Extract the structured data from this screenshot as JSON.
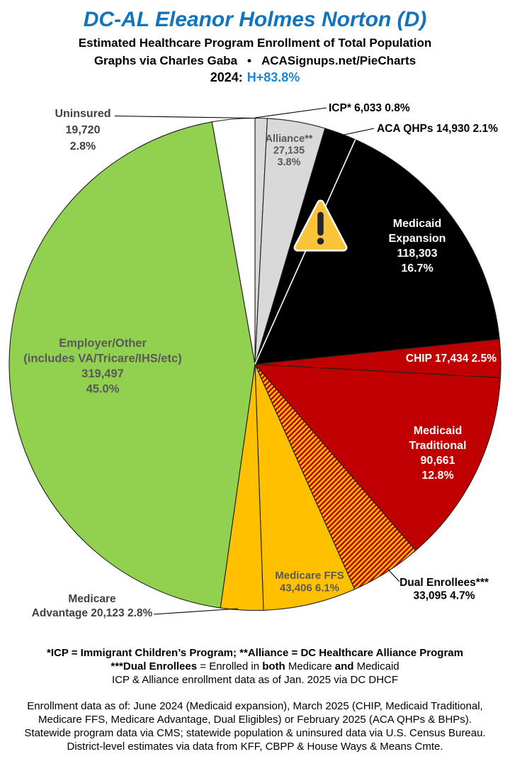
{
  "header": {
    "title": "DC-AL Eleanor Holmes Norton (D)",
    "subtitle": "Estimated Healthcare Program Enrollment of Total Population",
    "credit_left": "Graphs via Charles Gaba",
    "credit_bullet": "•",
    "credit_right": "ACASignups.net/PieCharts",
    "year_label": "2024:",
    "lean_value": "H+83.8%"
  },
  "colors": {
    "title_blue": "#1273bd",
    "lean_blue": "#1b87d6",
    "black": "#000000",
    "dark_red": "#c00000",
    "gold": "#ffc000",
    "green": "#92d050",
    "light_gray": "#d9d9d9",
    "white": "#ffffff",
    "gray_label": "#595959",
    "outline": "#1f1f1f"
  },
  "chart_data": {
    "type": "pie",
    "title": "Estimated Healthcare Program Enrollment of Total Population",
    "direction": "clockwise",
    "start_angle_deg": 0,
    "annotation_icon": "warning",
    "hatch": {
      "base": "#c00000",
      "stripe": "#ffc000"
    },
    "slices": [
      {
        "id": "icp",
        "name": "ICP*",
        "value": 6033,
        "pct": 0.8,
        "color": "#d9d9d9",
        "label_lines": [
          "ICP* 6,033 0.8%"
        ],
        "label_color": "#000000",
        "label_placement": "outside"
      },
      {
        "id": "alliance",
        "name": "Alliance**",
        "value": 27135,
        "pct": 3.8,
        "color": "#d9d9d9",
        "label_lines": [
          "Alliance**",
          "27,135",
          "3.8%"
        ],
        "label_color": "#595959",
        "label_placement": "inside"
      },
      {
        "id": "aca_qhps",
        "name": "ACA QHPs",
        "value": 14930,
        "pct": 2.1,
        "color": "#000000",
        "label_lines": [
          "ACA QHPs 14,930 2.1%"
        ],
        "label_color": "#000000",
        "label_placement": "outside"
      },
      {
        "id": "medicaid_expansion",
        "name": "Medicaid Expansion",
        "value": 118303,
        "pct": 16.7,
        "color": "#000000",
        "label_lines": [
          "Medicaid",
          "Expansion",
          "118,303",
          "16.7%"
        ],
        "label_color": "#ffffff",
        "label_placement": "inside"
      },
      {
        "id": "chip",
        "name": "CHIP",
        "value": 17434,
        "pct": 2.5,
        "color": "#c00000",
        "label_lines": [
          "CHIP 17,434 2.5%"
        ],
        "label_color": "#ffffff",
        "label_placement": "inside"
      },
      {
        "id": "medicaid_traditional",
        "name": "Medicaid Traditional",
        "value": 90661,
        "pct": 12.8,
        "color": "#c00000",
        "label_lines": [
          "Medicaid",
          "Traditional",
          "90,661",
          "12.8%"
        ],
        "label_color": "#ffffff",
        "label_placement": "inside"
      },
      {
        "id": "dual_enrollees",
        "name": "Dual Enrollees***",
        "value": 33095,
        "pct": 4.7,
        "color": "hatch-red-gold",
        "label_lines": [
          "Dual Enrollees***",
          "33,095 4.7%"
        ],
        "label_color": "#000000",
        "label_placement": "outside"
      },
      {
        "id": "medicare_ffs",
        "name": "Medicare FFS",
        "value": 43406,
        "pct": 6.1,
        "color": "#ffc000",
        "label_lines": [
          "Medicare FFS",
          "43,406 6.1%"
        ],
        "label_color": "#595959",
        "label_placement": "inside"
      },
      {
        "id": "medicare_advantage",
        "name": "Medicare Advantage",
        "value": 20123,
        "pct": 2.8,
        "color": "#ffc000",
        "label_lines": [
          "Medicare",
          "Advantage 20,123 2.8%"
        ],
        "label_color": "#404040",
        "label_placement": "outside"
      },
      {
        "id": "employer_other",
        "name": "Employer/Other (includes VA/Tricare/IHS/etc)",
        "value": 319497,
        "pct": 45.0,
        "color": "#92d050",
        "label_lines": [
          "Employer/Other",
          "(includes VA/Tricare/IHS/etc)",
          "319,497",
          "45.0%"
        ],
        "label_color": "#595959",
        "label_placement": "inside"
      },
      {
        "id": "uninsured",
        "name": "Uninsured",
        "value": 19720,
        "pct": 2.8,
        "color": "#ffffff",
        "label_lines": [
          "Uninsured",
          "19,720",
          "2.8%"
        ],
        "label_color": "#404040",
        "label_placement": "outside"
      }
    ]
  },
  "footnotes": {
    "def_line1": "*ICP = Immigrant Children’s Program; **Alliance = DC Healthcare Alliance Program",
    "dual": {
      "b1": "***Dual Enrollees",
      "r1": " = Enrolled in ",
      "b2": "both",
      "r2": " Medicare ",
      "b3": "and",
      "r3": " Medicaid"
    },
    "def_line3": "ICP & Alliance enrollment data as of Jan. 2025 via DC DHCF",
    "sources": [
      "Enrollment data as of: June 2024 (Medicaid expansion), March 2025 (CHIP, Medicaid Traditional,",
      "Medicare FFS, Medicare Advantage, Dual Eligibles) or February 2025 (ACA QHPs & BHPs).",
      "Statewide program data via CMS; statewide population & uninsured data via U.S. Census Bureau.",
      "District-level estimates via data from KFF, CBPP & House Ways & Means Cmte."
    ]
  }
}
